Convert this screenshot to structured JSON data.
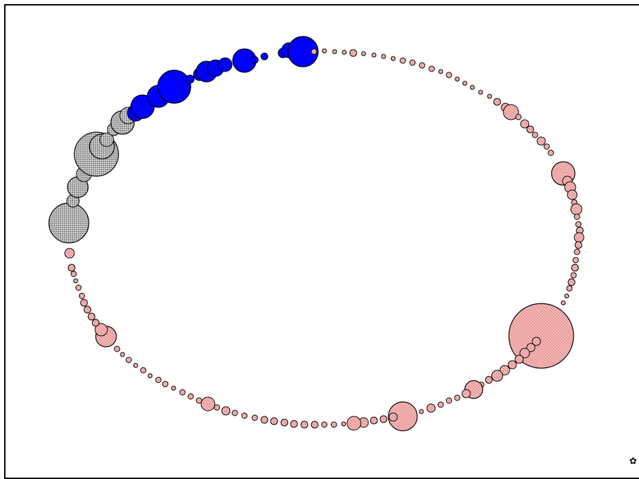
{
  "chart_data": {
    "type": "scatter",
    "title": "",
    "xlabel": "",
    "ylabel": "",
    "grid": false,
    "legend": "none",
    "colors": {
      "pink": "#f4a6a6",
      "blue": "#0000ff",
      "gray": "#c8c8c8",
      "stroke": "#000000"
    },
    "series": [
      {
        "style": "gray-crosshatch",
        "points": [
          [
            100,
            324,
            29
          ],
          [
            106,
            292,
            9
          ],
          [
            113,
            272,
            15
          ],
          [
            122,
            253,
            11
          ],
          [
            140,
            224,
            32
          ],
          [
            148,
            213,
            18
          ],
          [
            155,
            203,
            10
          ],
          [
            165,
            188,
            9
          ],
          [
            178,
            178,
            17
          ],
          [
            186,
            168,
            12
          ]
        ]
      },
      {
        "style": "blue-solid",
        "points": [
          [
            197,
            164,
            12
          ],
          [
            207,
            155,
            17
          ],
          [
            230,
            140,
            16
          ],
          [
            253,
            126,
            24
          ],
          [
            276,
            115,
            6
          ],
          [
            290,
            108,
            9
          ],
          [
            300,
            104,
            15
          ],
          [
            313,
            99,
            12
          ],
          [
            327,
            94,
            10
          ],
          [
            355,
            88,
            17
          ],
          [
            370,
            87,
            5
          ],
          [
            384,
            82,
            5
          ],
          [
            411,
            77,
            7
          ],
          [
            420,
            73,
            11
          ],
          [
            440,
            75,
            22
          ]
        ]
      },
      {
        "style": "pink-hatched",
        "points": [
          [
            456,
            75,
            4
          ],
          [
            471,
            74,
            3
          ],
          [
            486,
            75,
            3
          ],
          [
            500,
            76,
            3
          ],
          [
            513,
            77,
            5
          ],
          [
            528,
            78,
            3
          ],
          [
            543,
            80,
            3
          ],
          [
            557,
            82,
            3
          ],
          [
            571,
            85,
            3
          ],
          [
            585,
            88,
            4
          ],
          [
            599,
            91,
            4
          ],
          [
            613,
            95,
            4
          ],
          [
            627,
            100,
            4
          ],
          [
            640,
            104,
            3
          ],
          [
            652,
            109,
            4
          ],
          [
            664,
            115,
            3
          ],
          [
            675,
            121,
            3
          ],
          [
            686,
            127,
            3
          ],
          [
            698,
            134,
            3
          ],
          [
            711,
            140,
            3
          ],
          [
            722,
            148,
            5
          ],
          [
            734,
            156,
            6
          ],
          [
            742,
            163,
            11
          ],
          [
            753,
            170,
            4
          ],
          [
            762,
            180,
            6
          ],
          [
            770,
            188,
            5
          ],
          [
            777,
            196,
            4
          ],
          [
            786,
            205,
            6
          ],
          [
            794,
            213,
            4
          ],
          [
            800,
            222,
            4
          ],
          [
            818,
            252,
            17
          ],
          [
            824,
            263,
            7
          ],
          [
            828,
            272,
            8
          ],
          [
            831,
            283,
            7
          ],
          [
            834,
            294,
            4
          ],
          [
            837,
            304,
            8
          ],
          [
            838,
            315,
            4
          ],
          [
            840,
            326,
            4
          ],
          [
            842,
            335,
            5
          ],
          [
            841,
            345,
            7
          ],
          [
            840,
            356,
            5
          ],
          [
            838,
            366,
            4
          ],
          [
            836,
            378,
            4
          ],
          [
            835,
            389,
            5
          ],
          [
            833,
            400,
            4
          ],
          [
            830,
            410,
            5
          ],
          [
            827,
            419,
            4
          ],
          [
            823,
            430,
            3
          ],
          [
            818,
            440,
            3
          ],
          [
            786,
            488,
            47
          ],
          [
            779,
            496,
            6
          ],
          [
            771,
            505,
            6
          ],
          [
            762,
            513,
            7
          ],
          [
            754,
            522,
            6
          ],
          [
            744,
            530,
            6
          ],
          [
            733,
            538,
            7
          ],
          [
            722,
            546,
            8
          ],
          [
            710,
            552,
            5
          ],
          [
            699,
            559,
            4
          ],
          [
            688,
            566,
            13
          ],
          [
            677,
            572,
            6
          ],
          [
            664,
            578,
            4
          ],
          [
            652,
            582,
            4
          ],
          [
            640,
            588,
            4
          ],
          [
            626,
            593,
            6
          ],
          [
            612,
            598,
            3
          ],
          [
            585,
            605,
            21
          ],
          [
            571,
            606,
            6
          ],
          [
            557,
            609,
            5
          ],
          [
            543,
            611,
            5
          ],
          [
            528,
            614,
            7
          ],
          [
            514,
            615,
            10
          ],
          [
            499,
            616,
            3
          ],
          [
            485,
            617,
            4
          ],
          [
            471,
            617,
            4
          ],
          [
            457,
            617,
            5
          ],
          [
            442,
            617,
            5
          ],
          [
            427,
            616,
            5
          ],
          [
            413,
            614,
            5
          ],
          [
            398,
            612,
            5
          ],
          [
            384,
            610,
            5
          ],
          [
            370,
            607,
            4
          ],
          [
            355,
            604,
            4
          ],
          [
            341,
            600,
            4
          ],
          [
            328,
            597,
            6
          ],
          [
            315,
            592,
            4
          ],
          [
            302,
            587,
            10
          ],
          [
            289,
            582,
            4
          ],
          [
            277,
            576,
            4
          ],
          [
            265,
            570,
            4
          ],
          [
            252,
            564,
            3
          ],
          [
            240,
            558,
            4
          ],
          [
            230,
            552,
            4
          ],
          [
            218,
            546,
            3
          ],
          [
            208,
            538,
            4
          ],
          [
            197,
            531,
            3
          ],
          [
            187,
            523,
            4
          ],
          [
            178,
            515,
            3
          ],
          [
            170,
            507,
            4
          ],
          [
            154,
            489,
            15
          ],
          [
            147,
            479,
            9
          ],
          [
            139,
            469,
            5
          ],
          [
            133,
            460,
            5
          ],
          [
            127,
            450,
            5
          ],
          [
            122,
            440,
            5
          ],
          [
            119,
            430,
            4
          ],
          [
            114,
            418,
            4
          ],
          [
            110,
            408,
            3
          ],
          [
            107,
            398,
            4
          ],
          [
            104,
            389,
            5
          ],
          [
            101,
            368,
            7
          ]
        ]
      }
    ]
  }
}
